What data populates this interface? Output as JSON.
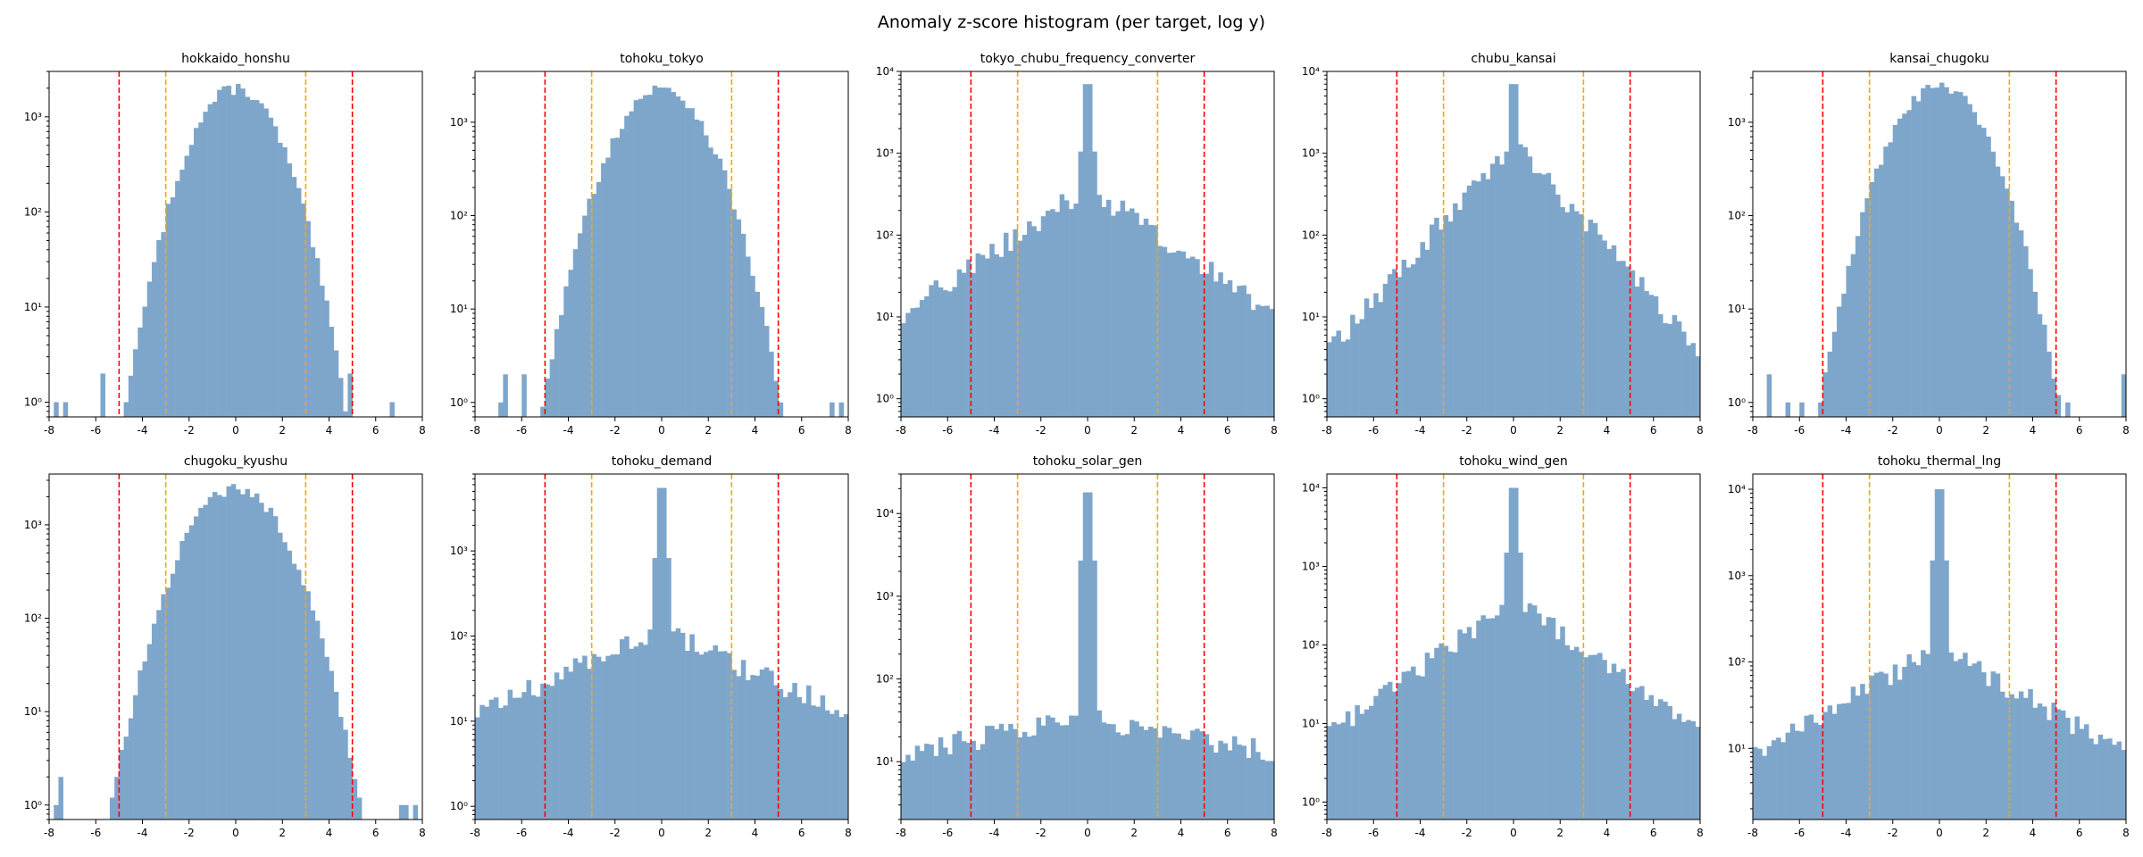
{
  "figure": {
    "title": "Anomaly z-score histogram (per target, log y)"
  },
  "colors": {
    "bars": "#7ea6cb",
    "threshold_3": "#ffa500",
    "threshold_5": "#ff0000"
  },
  "chart_data": [
    {
      "type": "bar",
      "title": "hokkaido_honshu",
      "shape": "gauss",
      "sigma": 1.2,
      "peak": 2000,
      "tail": "outer",
      "bins_x": [
        -8,
        8
      ],
      "ylim": [
        0.7,
        3000
      ],
      "yticks": [
        {
          "value": 1,
          "label": "10⁰"
        },
        {
          "value": 10,
          "label": "10¹"
        },
        {
          "value": 100,
          "label": "10²"
        },
        {
          "value": 1000,
          "label": "10³"
        }
      ],
      "xticks": [
        "-8",
        "-6",
        "-4",
        "-2",
        "0",
        "2",
        "4",
        "6",
        "8"
      ],
      "vlines": [
        -5,
        -3,
        3,
        5
      ]
    },
    {
      "type": "bar",
      "title": "tohoku_tokyo",
      "shape": "gauss",
      "sigma": 1.3,
      "peak": 2300,
      "tail": "sparse",
      "bins_x": [
        -8,
        8
      ],
      "ylim": [
        0.7,
        3500
      ],
      "yticks": [
        {
          "value": 1,
          "label": "10⁰"
        },
        {
          "value": 10,
          "label": "10¹"
        },
        {
          "value": 100,
          "label": "10²"
        },
        {
          "value": 1000,
          "label": "10³"
        }
      ],
      "xticks": [
        "-8",
        "-6",
        "-4",
        "-2",
        "0",
        "2",
        "4",
        "6",
        "8"
      ],
      "vlines": [
        -5,
        -3,
        3,
        5
      ]
    },
    {
      "type": "bar",
      "title": "tokyo_chubu_frequency_converter",
      "shape": "spike",
      "peak": 7000,
      "base": 400,
      "decay": 0.45,
      "floor": 8,
      "bins_x": [
        -8,
        8
      ],
      "ylim": [
        0.6,
        10000
      ],
      "yticks": [
        {
          "value": 1,
          "label": "10⁰"
        },
        {
          "value": 10,
          "label": "10¹"
        },
        {
          "value": 100,
          "label": "10²"
        },
        {
          "value": 1000,
          "label": "10³"
        },
        {
          "value": 10000,
          "label": "10⁴"
        }
      ],
      "xticks": [
        "-8",
        "-6",
        "-4",
        "-2",
        "0",
        "2",
        "4",
        "6",
        "8"
      ],
      "vlines": [
        -5,
        -3,
        3,
        5
      ]
    },
    {
      "type": "bar",
      "title": "chubu_kansai",
      "shape": "spike",
      "peak": 7000,
      "base": 1500,
      "decay": 0.75,
      "floor": 1.2,
      "bins_x": [
        -8,
        8
      ],
      "ylim": [
        0.6,
        10000
      ],
      "yticks": [
        {
          "value": 1,
          "label": "10⁰"
        },
        {
          "value": 10,
          "label": "10¹"
        },
        {
          "value": 100,
          "label": "10²"
        },
        {
          "value": 1000,
          "label": "10³"
        },
        {
          "value": 10000,
          "label": "10⁴"
        }
      ],
      "xticks": [
        "-8",
        "-6",
        "-4",
        "-2",
        "0",
        "2",
        "4",
        "6",
        "8"
      ],
      "vlines": [
        -5,
        -3,
        3,
        5
      ]
    },
    {
      "type": "bar",
      "title": "kansai_chugoku",
      "shape": "gauss",
      "sigma": 1.3,
      "peak": 2400,
      "tail": "sparse",
      "bins_x": [
        -8,
        8
      ],
      "ylim": [
        0.7,
        3500
      ],
      "yticks": [
        {
          "value": 1,
          "label": "10⁰"
        },
        {
          "value": 10,
          "label": "10¹"
        },
        {
          "value": 100,
          "label": "10²"
        },
        {
          "value": 1000,
          "label": "10³"
        }
      ],
      "xticks": [
        "-8",
        "-6",
        "-4",
        "-2",
        "0",
        "2",
        "4",
        "6",
        "8"
      ],
      "vlines": [
        -5,
        -3,
        3,
        5
      ]
    },
    {
      "type": "bar",
      "title": "chugoku_kyushu",
      "shape": "gauss",
      "sigma": 1.35,
      "peak": 2500,
      "tail": "sparse",
      "bins_x": [
        -8,
        8
      ],
      "ylim": [
        0.7,
        3500
      ],
      "yticks": [
        {
          "value": 1,
          "label": "10⁰"
        },
        {
          "value": 10,
          "label": "10¹"
        },
        {
          "value": 100,
          "label": "10²"
        },
        {
          "value": 1000,
          "label": "10³"
        }
      ],
      "xticks": [
        "-8",
        "-6",
        "-4",
        "-2",
        "0",
        "2",
        "4",
        "6",
        "8"
      ],
      "vlines": [
        -5,
        -3,
        3,
        5
      ]
    },
    {
      "type": "bar",
      "title": "tohoku_demand",
      "shape": "spike",
      "peak": 5500,
      "base": 120,
      "decay": 0.28,
      "floor": 2,
      "bins_x": [
        -8,
        8
      ],
      "ylim": [
        0.7,
        8000
      ],
      "yticks": [
        {
          "value": 1,
          "label": "10⁰"
        },
        {
          "value": 10,
          "label": "10¹"
        },
        {
          "value": 100,
          "label": "10²"
        },
        {
          "value": 1000,
          "label": "10³"
        }
      ],
      "xticks": [
        "-8",
        "-6",
        "-4",
        "-2",
        "0",
        "2",
        "4",
        "6",
        "8"
      ],
      "vlines": [
        -5,
        -3,
        3,
        5
      ]
    },
    {
      "type": "bar",
      "title": "tohoku_solar_gen",
      "shape": "spike",
      "peak": 18000,
      "base": 35,
      "decay": 0.12,
      "floor": 3,
      "bins_x": [
        -8,
        8
      ],
      "ylim": [
        2,
        30000
      ],
      "yticks": [
        {
          "value": 10,
          "label": "10¹"
        },
        {
          "value": 100,
          "label": "10²"
        },
        {
          "value": 1000,
          "label": "10³"
        },
        {
          "value": 10000,
          "label": "10⁴"
        }
      ],
      "xticks": [
        "-8",
        "-6",
        "-4",
        "-2",
        "0",
        "2",
        "4",
        "6",
        "8"
      ],
      "vlines": [
        -5,
        -3,
        3,
        5
      ]
    },
    {
      "type": "bar",
      "title": "tohoku_wind_gen",
      "shape": "spike",
      "peak": 10000,
      "base": 400,
      "decay": 0.5,
      "floor": 1.5,
      "bins_x": [
        -8,
        8
      ],
      "ylim": [
        0.6,
        15000
      ],
      "yticks": [
        {
          "value": 1,
          "label": "10⁰"
        },
        {
          "value": 10,
          "label": "10¹"
        },
        {
          "value": 100,
          "label": "10²"
        },
        {
          "value": 1000,
          "label": "10³"
        },
        {
          "value": 10000,
          "label": "10⁴"
        }
      ],
      "xticks": [
        "-8",
        "-6",
        "-4",
        "-2",
        "0",
        "2",
        "4",
        "6",
        "8"
      ],
      "vlines": [
        -5,
        -3,
        3,
        5
      ]
    },
    {
      "type": "bar",
      "title": "tohoku_thermal_lng",
      "shape": "spike",
      "peak": 10000,
      "base": 150,
      "decay": 0.35,
      "floor": 2,
      "bins_x": [
        -8,
        8
      ],
      "ylim": [
        1.5,
        15000
      ],
      "yticks": [
        {
          "value": 10,
          "label": "10¹"
        },
        {
          "value": 100,
          "label": "10²"
        },
        {
          "value": 1000,
          "label": "10³"
        },
        {
          "value": 10000,
          "label": "10⁴"
        }
      ],
      "xticks": [
        "-8",
        "-6",
        "-4",
        "-2",
        "0",
        "2",
        "4",
        "6",
        "8"
      ],
      "vlines": [
        -5,
        -3,
        3,
        5
      ]
    }
  ]
}
